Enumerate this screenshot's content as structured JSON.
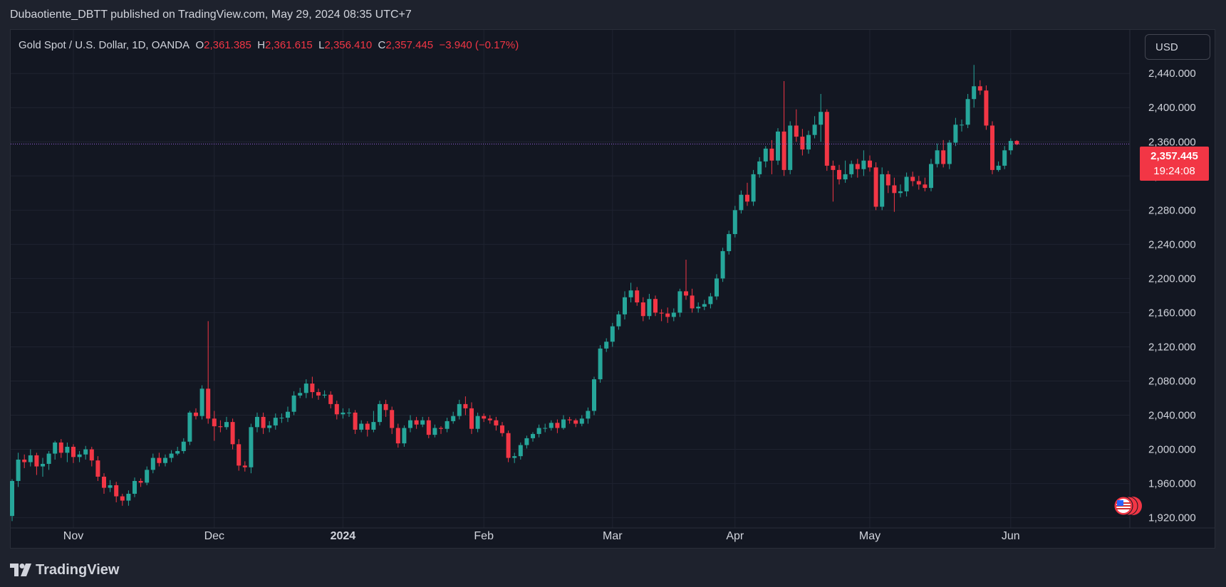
{
  "header": {
    "publisher": "Dubaotiente_DBTT published on TradingView.com, May 29, 2024 08:35 UTC+7"
  },
  "legend": {
    "symbol": "Gold Spot / U.S. Dollar, 1D, OANDA",
    "o_label": "O",
    "o_value": "2,361.385",
    "h_label": "H",
    "h_value": "2,361.615",
    "l_label": "L",
    "l_value": "2,356.410",
    "c_label": "C",
    "c_value": "2,357.445",
    "change": "−3.940 (−0.17%)"
  },
  "toolbar": {
    "currency": "USD"
  },
  "price_tag": {
    "price": "2,357.445",
    "countdown": "19:24:08"
  },
  "footer": {
    "brand": "TradingView"
  },
  "colors": {
    "up": "#26a69a",
    "down": "#f23645",
    "bg": "#131722",
    "grid": "#1f2330",
    "text": "#d1d4dc"
  },
  "chart_data": {
    "type": "candlestick",
    "ylim": [
      1908,
      2466
    ],
    "y_ticks": [
      1920,
      1960,
      2000,
      2040,
      2080,
      2120,
      2160,
      2200,
      2240,
      2280,
      2320,
      2360,
      2400,
      2440
    ],
    "y_tick_labels": [
      "1,920.000",
      "1,960.000",
      "2,000.000",
      "2,040.000",
      "2,080.000",
      "2,120.000",
      "2,160.000",
      "2,200.000",
      "2,240.000",
      "2,280.000",
      "2,320.000",
      "2,360.000",
      "2,400.000",
      "2,440.000"
    ],
    "x_labels": [
      {
        "label": "Nov",
        "index": 10
      },
      {
        "label": "Dec",
        "index": 33
      },
      {
        "label": "2024",
        "index": 54
      },
      {
        "label": "Feb",
        "index": 77
      },
      {
        "label": "Mar",
        "index": 98
      },
      {
        "label": "Apr",
        "index": 118
      },
      {
        "label": "May",
        "index": 140
      },
      {
        "label": "Jun",
        "index": 163
      }
    ],
    "current_price": 2357.445,
    "candles": [
      [
        1922,
        1963,
        1916,
        1965
      ],
      [
        1963,
        1988,
        1956,
        1996
      ],
      [
        1988,
        1985,
        1978,
        1994
      ],
      [
        1985,
        1993,
        1980,
        2000
      ],
      [
        1993,
        1980,
        1970,
        1996
      ],
      [
        1980,
        1983,
        1968,
        1990
      ],
      [
        1983,
        1995,
        1976,
        1998
      ],
      [
        1995,
        2008,
        1988,
        2010
      ],
      [
        2008,
        1996,
        1990,
        2012
      ],
      [
        1996,
        2003,
        1985,
        2008
      ],
      [
        2003,
        1991,
        1984,
        2006
      ],
      [
        1991,
        1994,
        1985,
        1998
      ],
      [
        1994,
        2000,
        1988,
        2004
      ],
      [
        2000,
        1987,
        1980,
        2003
      ],
      [
        1987,
        1968,
        1963,
        1992
      ],
      [
        1968,
        1955,
        1948,
        1972
      ],
      [
        1955,
        1958,
        1950,
        1964
      ],
      [
        1958,
        1945,
        1938,
        1962
      ],
      [
        1945,
        1940,
        1934,
        1948
      ],
      [
        1940,
        1948,
        1934,
        1952
      ],
      [
        1948,
        1963,
        1944,
        1967
      ],
      [
        1963,
        1961,
        1956,
        1966
      ],
      [
        1961,
        1976,
        1958,
        1980
      ],
      [
        1976,
        1990,
        1972,
        1995
      ],
      [
        1990,
        1984,
        1980,
        1996
      ],
      [
        1984,
        1990,
        1980,
        1994
      ],
      [
        1990,
        1995,
        1985,
        1999
      ],
      [
        1995,
        1998,
        1993,
        2003
      ],
      [
        1998,
        2009,
        1995,
        2013
      ],
      [
        2009,
        2043,
        2005,
        2045
      ],
      [
        2043,
        2039,
        2035,
        2048
      ],
      [
        2039,
        2071,
        2035,
        2075
      ],
      [
        2071,
        2036,
        2030,
        2150
      ],
      [
        2036,
        2027,
        2010,
        2045
      ],
      [
        2027,
        2026,
        2020,
        2034
      ],
      [
        2026,
        2032,
        2023,
        2038
      ],
      [
        2032,
        2006,
        2000,
        2036
      ],
      [
        2006,
        1981,
        1975,
        2012
      ],
      [
        1981,
        1979,
        1974,
        1986
      ],
      [
        1979,
        2026,
        1972,
        2030
      ],
      [
        2026,
        2038,
        2020,
        2043
      ],
      [
        2038,
        2025,
        2018,
        2043
      ],
      [
        2025,
        2028,
        2020,
        2033
      ],
      [
        2028,
        2037,
        2023,
        2042
      ],
      [
        2037,
        2037,
        2031,
        2042
      ],
      [
        2037,
        2044,
        2032,
        2050
      ],
      [
        2044,
        2063,
        2040,
        2068
      ],
      [
        2063,
        2066,
        2060,
        2072
      ],
      [
        2066,
        2077,
        2060,
        2082
      ],
      [
        2077,
        2067,
        2060,
        2085
      ],
      [
        2067,
        2063,
        2058,
        2071
      ],
      [
        2063,
        2064,
        2060,
        2069
      ],
      [
        2064,
        2053,
        2048,
        2068
      ],
      [
        2053,
        2041,
        2035,
        2057
      ],
      [
        2041,
        2043,
        2036,
        2048
      ],
      [
        2043,
        2043,
        2038,
        2048
      ],
      [
        2043,
        2023,
        2018,
        2046
      ],
      [
        2023,
        2030,
        2020,
        2034
      ],
      [
        2030,
        2023,
        2015,
        2033
      ],
      [
        2023,
        2032,
        2020,
        2045
      ],
      [
        2032,
        2053,
        2028,
        2057
      ],
      [
        2053,
        2046,
        2038,
        2058
      ],
      [
        2046,
        2025,
        2018,
        2050
      ],
      [
        2025,
        2007,
        2002,
        2030
      ],
      [
        2007,
        2025,
        2003,
        2028
      ],
      [
        2025,
        2034,
        2020,
        2040
      ],
      [
        2034,
        2029,
        2024,
        2038
      ],
      [
        2029,
        2034,
        2026,
        2038
      ],
      [
        2034,
        2017,
        2013,
        2038
      ],
      [
        2017,
        2025,
        2014,
        2029
      ],
      [
        2025,
        2024,
        2018,
        2027
      ],
      [
        2024,
        2033,
        2020,
        2037
      ],
      [
        2033,
        2039,
        2030,
        2044
      ],
      [
        2039,
        2053,
        2035,
        2058
      ],
      [
        2053,
        2048,
        2040,
        2062
      ],
      [
        2048,
        2024,
        2018,
        2055
      ],
      [
        2024,
        2039,
        2020,
        2043
      ],
      [
        2039,
        2036,
        2032,
        2042
      ],
      [
        2036,
        2034,
        2030,
        2040
      ],
      [
        2034,
        2028,
        2022,
        2038
      ],
      [
        2028,
        2019,
        2015,
        2032
      ],
      [
        2019,
        1990,
        1985,
        2022
      ],
      [
        1990,
        1992,
        1984,
        1996
      ],
      [
        1992,
        2005,
        1988,
        2008
      ],
      [
        2005,
        2013,
        2001,
        2016
      ],
      [
        2013,
        2018,
        2009,
        2020
      ],
      [
        2018,
        2025,
        2014,
        2029
      ],
      [
        2025,
        2025,
        2020,
        2030
      ],
      [
        2025,
        2031,
        2022,
        2034
      ],
      [
        2031,
        2025,
        2019,
        2035
      ],
      [
        2025,
        2035,
        2023,
        2040
      ],
      [
        2035,
        2034,
        2030,
        2038
      ],
      [
        2034,
        2030,
        2026,
        2036
      ],
      [
        2030,
        2036,
        2027,
        2040
      ],
      [
        2036,
        2045,
        2030,
        2049
      ],
      [
        2045,
        2082,
        2040,
        2085
      ],
      [
        2082,
        2118,
        2078,
        2122
      ],
      [
        2118,
        2126,
        2114,
        2130
      ],
      [
        2126,
        2144,
        2120,
        2148
      ],
      [
        2144,
        2158,
        2140,
        2162
      ],
      [
        2158,
        2178,
        2152,
        2185
      ],
      [
        2178,
        2186,
        2172,
        2195
      ],
      [
        2186,
        2172,
        2168,
        2190
      ],
      [
        2172,
        2156,
        2150,
        2178
      ],
      [
        2156,
        2176,
        2152,
        2182
      ],
      [
        2176,
        2160,
        2156,
        2180
      ],
      [
        2160,
        2159,
        2150,
        2164
      ],
      [
        2159,
        2155,
        2148,
        2166
      ],
      [
        2155,
        2160,
        2150,
        2165
      ],
      [
        2160,
        2185,
        2155,
        2188
      ],
      [
        2185,
        2180,
        2175,
        2222
      ],
      [
        2180,
        2165,
        2160,
        2188
      ],
      [
        2165,
        2167,
        2160,
        2172
      ],
      [
        2167,
        2170,
        2163,
        2175
      ],
      [
        2170,
        2179,
        2165,
        2183
      ],
      [
        2179,
        2200,
        2175,
        2205
      ],
      [
        2200,
        2232,
        2196,
        2236
      ],
      [
        2232,
        2252,
        2228,
        2256
      ],
      [
        2252,
        2280,
        2248,
        2285
      ],
      [
        2280,
        2298,
        2276,
        2303
      ],
      [
        2298,
        2290,
        2285,
        2312
      ],
      [
        2290,
        2322,
        2285,
        2327
      ],
      [
        2322,
        2337,
        2318,
        2342
      ],
      [
        2337,
        2352,
        2330,
        2355
      ],
      [
        2352,
        2338,
        2322,
        2362
      ],
      [
        2338,
        2372,
        2333,
        2376
      ],
      [
        2372,
        2327,
        2320,
        2431
      ],
      [
        2327,
        2379,
        2322,
        2384
      ],
      [
        2379,
        2366,
        2360,
        2398
      ],
      [
        2366,
        2351,
        2344,
        2375
      ],
      [
        2351,
        2368,
        2346,
        2373
      ],
      [
        2368,
        2380,
        2364,
        2390
      ],
      [
        2380,
        2395,
        2360,
        2416
      ],
      [
        2395,
        2332,
        2326,
        2398
      ],
      [
        2332,
        2327,
        2290,
        2338
      ],
      [
        2327,
        2316,
        2310,
        2333
      ],
      [
        2316,
        2322,
        2312,
        2338
      ],
      [
        2322,
        2334,
        2318,
        2338
      ],
      [
        2334,
        2328,
        2318,
        2340
      ],
      [
        2328,
        2338,
        2320,
        2350
      ],
      [
        2338,
        2330,
        2325,
        2344
      ],
      [
        2330,
        2284,
        2280,
        2336
      ],
      [
        2284,
        2322,
        2280,
        2330
      ],
      [
        2322,
        2309,
        2300,
        2326
      ],
      [
        2309,
        2300,
        2278,
        2318
      ],
      [
        2300,
        2302,
        2295,
        2310
      ],
      [
        2302,
        2319,
        2296,
        2324
      ],
      [
        2319,
        2314,
        2308,
        2325
      ],
      [
        2314,
        2310,
        2304,
        2320
      ],
      [
        2310,
        2306,
        2302,
        2318
      ],
      [
        2306,
        2334,
        2302,
        2340
      ],
      [
        2334,
        2350,
        2330,
        2358
      ],
      [
        2350,
        2334,
        2330,
        2362
      ],
      [
        2334,
        2359,
        2328,
        2362
      ],
      [
        2359,
        2380,
        2355,
        2388
      ],
      [
        2380,
        2380,
        2372,
        2386
      ],
      [
        2380,
        2410,
        2376,
        2416
      ],
      [
        2410,
        2425,
        2400,
        2450
      ],
      [
        2425,
        2420,
        2415,
        2432
      ],
      [
        2420,
        2379,
        2374,
        2426
      ],
      [
        2379,
        2327,
        2322,
        2384
      ],
      [
        2327,
        2332,
        2325,
        2337
      ],
      [
        2332,
        2350,
        2328,
        2355
      ],
      [
        2350,
        2361,
        2345,
        2364
      ],
      [
        2361,
        2357,
        2356,
        2362
      ]
    ]
  }
}
